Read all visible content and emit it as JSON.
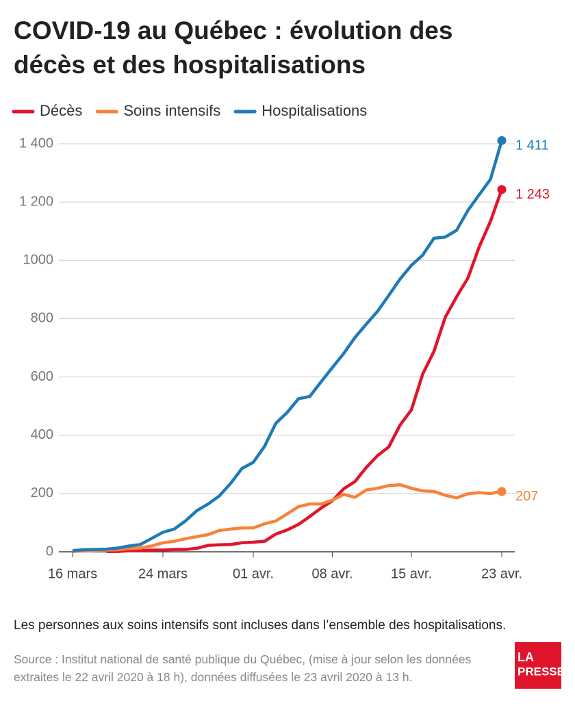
{
  "chart_data": {
    "type": "line",
    "title": "COVID-19 au Québec : évolution des décès et des hospitalisations",
    "categories": [
      "16 mars",
      null,
      null,
      null,
      null,
      null,
      null,
      null,
      "24 mars",
      null,
      null,
      null,
      null,
      null,
      null,
      null,
      "01 avr.",
      null,
      null,
      null,
      null,
      null,
      null,
      "08 avr.",
      null,
      null,
      null,
      null,
      null,
      null,
      "15 avr.",
      null,
      null,
      null,
      null,
      null,
      null,
      null,
      "23 avr."
    ],
    "series": [
      {
        "name": "Décès",
        "color": "#e0152b",
        "values": [
          null,
          null,
          null,
          1,
          1,
          4,
          4,
          6,
          6,
          8,
          8,
          12,
          22,
          24,
          25,
          31,
          33,
          36,
          61,
          75,
          94,
          121,
          150,
          175,
          216,
          241,
          289,
          330,
          360,
          435,
          487,
          610,
          688,
          805,
          875,
          939,
          1046,
          1134,
          1243
        ],
        "end_label": "1 243"
      },
      {
        "name": "Soins intensifs",
        "color": "#f5833a",
        "values": [
          1,
          3,
          5,
          6,
          7,
          11,
          13,
          20,
          31,
          36,
          45,
          52,
          59,
          73,
          78,
          82,
          82,
          96,
          106,
          130,
          155,
          164,
          164,
          177,
          197,
          187,
          212,
          218,
          227,
          230,
          218,
          209,
          207,
          194,
          185,
          199,
          203,
          200,
          207
        ],
        "end_label": "207"
      },
      {
        "name": "Hospitalisations",
        "color": "#1f7bb6",
        "values": [
          4,
          7,
          8,
          9,
          13,
          20,
          25,
          46,
          67,
          78,
          106,
          141,
          164,
          192,
          235,
          286,
          307,
          362,
          441,
          478,
          525,
          533,
          583,
          632,
          680,
          735,
          781,
          825,
          880,
          936,
          983,
          1018,
          1076,
          1080,
          1103,
          1171,
          1225,
          1278,
          1411
        ],
        "end_label": "1 411"
      }
    ],
    "ylim": [
      0,
      1400
    ],
    "yticks": [
      0,
      200,
      400,
      600,
      800,
      1000,
      {
        "value": 1200,
        "label": "1 200"
      },
      {
        "value": 1400,
        "label": "1 400"
      }
    ],
    "grid": true,
    "legend": "top",
    "note": "Les personnes aux soins intensifs sont incluses dans l’ensemble des hospitalisations.",
    "source": "Source : Institut national de santé publique du Québec, (mise à jour selon les données extraites le 22 avril 2020 à 18 h), données diffusées le 23 avril 2020 à 13 h.",
    "logo": [
      "LA",
      "PRESSE"
    ]
  }
}
